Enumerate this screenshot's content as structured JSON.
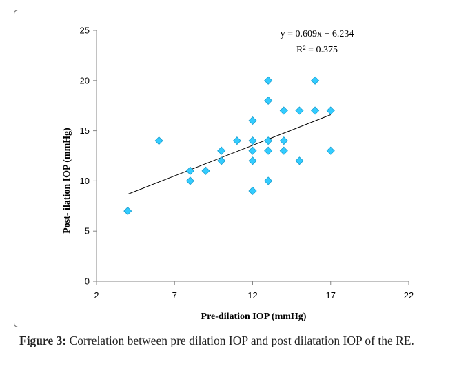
{
  "chart_data": {
    "type": "scatter",
    "xlabel": "Pre-dilation IOP (mmHg)",
    "ylabel": "Post- ilation IOP (mmHg)",
    "xlim": [
      2,
      22
    ],
    "ylim": [
      0,
      25
    ],
    "xticks": [
      "2",
      "7",
      "12",
      "17",
      "22"
    ],
    "yticks": [
      "0",
      "5",
      "10",
      "15",
      "20",
      "25"
    ],
    "grid": false,
    "marker": "diamond",
    "marker_color": "#33CCFF",
    "points": [
      {
        "x": 4,
        "y": 7
      },
      {
        "x": 6,
        "y": 14
      },
      {
        "x": 8,
        "y": 11
      },
      {
        "x": 8,
        "y": 10
      },
      {
        "x": 9,
        "y": 11
      },
      {
        "x": 10,
        "y": 13
      },
      {
        "x": 10,
        "y": 12
      },
      {
        "x": 11,
        "y": 14
      },
      {
        "x": 12,
        "y": 16
      },
      {
        "x": 12,
        "y": 14
      },
      {
        "x": 12,
        "y": 13
      },
      {
        "x": 12,
        "y": 12
      },
      {
        "x": 12,
        "y": 9
      },
      {
        "x": 13,
        "y": 20
      },
      {
        "x": 13,
        "y": 18
      },
      {
        "x": 13,
        "y": 14
      },
      {
        "x": 13,
        "y": 13
      },
      {
        "x": 13,
        "y": 10
      },
      {
        "x": 14,
        "y": 17
      },
      {
        "x": 14,
        "y": 14
      },
      {
        "x": 14,
        "y": 13
      },
      {
        "x": 15,
        "y": 17
      },
      {
        "x": 15,
        "y": 12
      },
      {
        "x": 16,
        "y": 20
      },
      {
        "x": 16,
        "y": 17
      },
      {
        "x": 17,
        "y": 17
      },
      {
        "x": 17,
        "y": 13
      }
    ],
    "trendline": {
      "type": "linear",
      "slope": 0.609,
      "intercept": 6.234,
      "x_range": [
        4,
        17
      ]
    },
    "equation": "y = 0.609x + 6.234",
    "r_squared": "R² = 0.375"
  },
  "caption": {
    "label": "Figure 3:",
    "text": " Correlation between pre dilation IOP and post dilatation IOP of the RE."
  }
}
